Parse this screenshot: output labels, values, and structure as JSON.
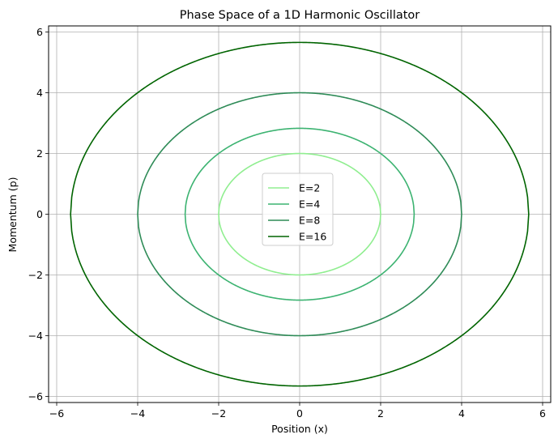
{
  "chart_data": {
    "type": "line",
    "title": "Phase Space of a 1D Harmonic Oscillator",
    "xlabel": "Position (x)",
    "ylabel": "Momentum (p)",
    "xlim": [
      -6.2,
      6.2
    ],
    "ylim": [
      -6.2,
      6.2
    ],
    "xticks": [
      -6,
      -4,
      -2,
      0,
      2,
      4,
      6
    ],
    "yticks": [
      -6,
      -4,
      -2,
      0,
      2,
      4,
      6
    ],
    "xtick_labels": [
      "−6",
      "−4",
      "−2",
      "0",
      "2",
      "4",
      "6"
    ],
    "ytick_labels": [
      "−6",
      "−4",
      "−2",
      "0",
      "2",
      "4",
      "6"
    ],
    "grid": true,
    "legend_position": "center",
    "series": [
      {
        "name": "E=2",
        "energy": 2,
        "color": "#90ee90"
      },
      {
        "name": "E=4",
        "energy": 4,
        "color": "#3cb371"
      },
      {
        "name": "E=8",
        "energy": 8,
        "color": "#2e8b57"
      },
      {
        "name": "E=16",
        "energy": 16,
        "color": "#006400"
      }
    ]
  }
}
